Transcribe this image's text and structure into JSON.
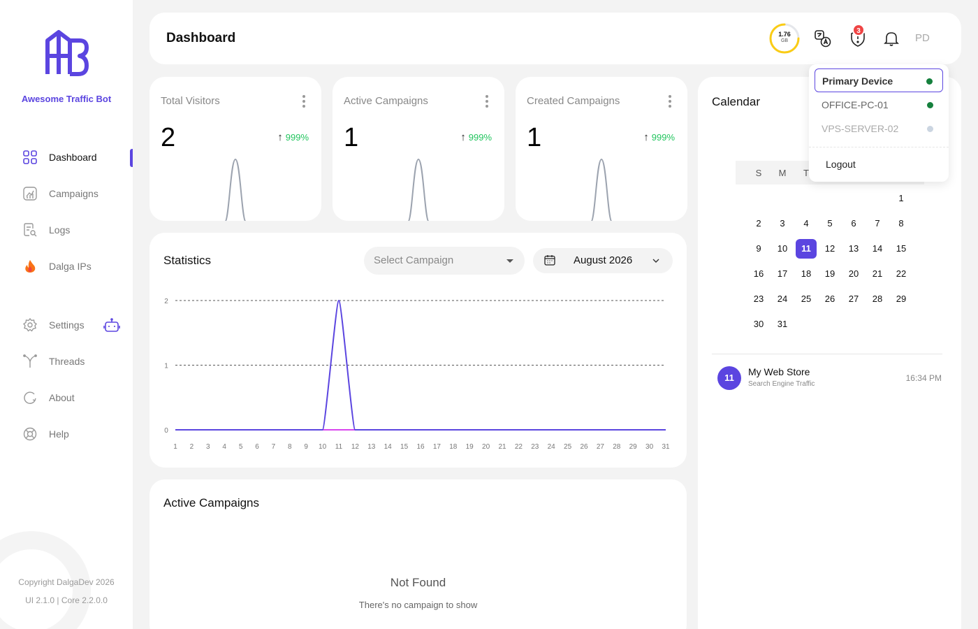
{
  "app": {
    "name": "Awesome Traffic Bot"
  },
  "sidebar": {
    "items": [
      {
        "label": "Dashboard",
        "icon": "dashboard-grid-icon"
      },
      {
        "label": "Campaigns",
        "icon": "campaigns-chart-icon"
      },
      {
        "label": "Logs",
        "icon": "logs-search-icon"
      },
      {
        "label": "Dalga IPs",
        "icon": "fire-icon"
      },
      {
        "label": "Settings",
        "icon": "gear-icon"
      },
      {
        "label": "Threads",
        "icon": "threads-fork-icon"
      },
      {
        "label": "About",
        "icon": "about-icon"
      },
      {
        "label": "Help",
        "icon": "help-lifebuoy-icon"
      }
    ],
    "copyright": "Copyright DalgaDev 2026",
    "version": "UI 2.1.0 | Core 2.2.0.0"
  },
  "header": {
    "title": "Dashboard",
    "storage_value": "1.76",
    "storage_unit": "GB",
    "alert_count": "3",
    "avatar": "PD"
  },
  "stats": [
    {
      "title": "Total Visitors",
      "value": "2",
      "change": "999%"
    },
    {
      "title": "Active Campaigns",
      "value": "1",
      "change": "999%"
    },
    {
      "title": "Created Campaigns",
      "value": "1",
      "change": "999%"
    }
  ],
  "statistics": {
    "title": "Statistics",
    "select_placeholder": "Select Campaign",
    "month": "August 2026"
  },
  "chart_data": {
    "type": "line",
    "x": [
      1,
      2,
      3,
      4,
      5,
      6,
      7,
      8,
      9,
      10,
      11,
      12,
      13,
      14,
      15,
      16,
      17,
      18,
      19,
      20,
      21,
      22,
      23,
      24,
      25,
      26,
      27,
      28,
      29,
      30,
      31
    ],
    "series": [
      {
        "values": [
          0,
          0,
          0,
          0,
          0,
          0,
          0,
          0,
          0,
          0,
          2,
          0,
          0,
          0,
          0,
          0,
          0,
          0,
          0,
          0,
          0,
          0,
          0,
          0,
          0,
          0,
          0,
          0,
          0,
          0,
          0
        ],
        "color": "#5b45e0"
      },
      {
        "values": [
          0,
          0,
          0,
          0,
          0,
          0,
          0,
          0,
          0,
          0,
          0,
          0,
          0,
          0,
          0,
          0,
          0,
          0,
          0,
          0,
          0,
          0,
          0,
          0,
          0,
          0,
          0,
          0,
          0,
          0,
          0
        ],
        "color": "#d946ef"
      }
    ],
    "y_ticks": [
      "0",
      "1",
      "2"
    ],
    "ylim": [
      0,
      2
    ],
    "grid": true
  },
  "active_campaigns": {
    "title": "Active Campaigns",
    "empty_title": "Not Found",
    "empty_text": "There's no campaign to show"
  },
  "calendar": {
    "title": "Calendar",
    "dow": [
      "S",
      "M",
      "T"
    ],
    "selected_day": 11,
    "event": {
      "day": "11",
      "title": "My Web Store",
      "subtitle": "Search Engine Traffic",
      "time": "16:34 PM"
    }
  },
  "device_menu": {
    "items": [
      {
        "label": "Primary Device",
        "status_color": "#15803d"
      },
      {
        "label": "OFFICE-PC-01",
        "status_color": "#15803d"
      },
      {
        "label": "VPS-SERVER-02",
        "status_color": "#cbd5e1"
      }
    ],
    "logout": "Logout"
  },
  "colors": {
    "accent": "#5b45e0",
    "positive": "#22c55e",
    "alert": "#ef4444",
    "storage_ring": "#facc15"
  }
}
